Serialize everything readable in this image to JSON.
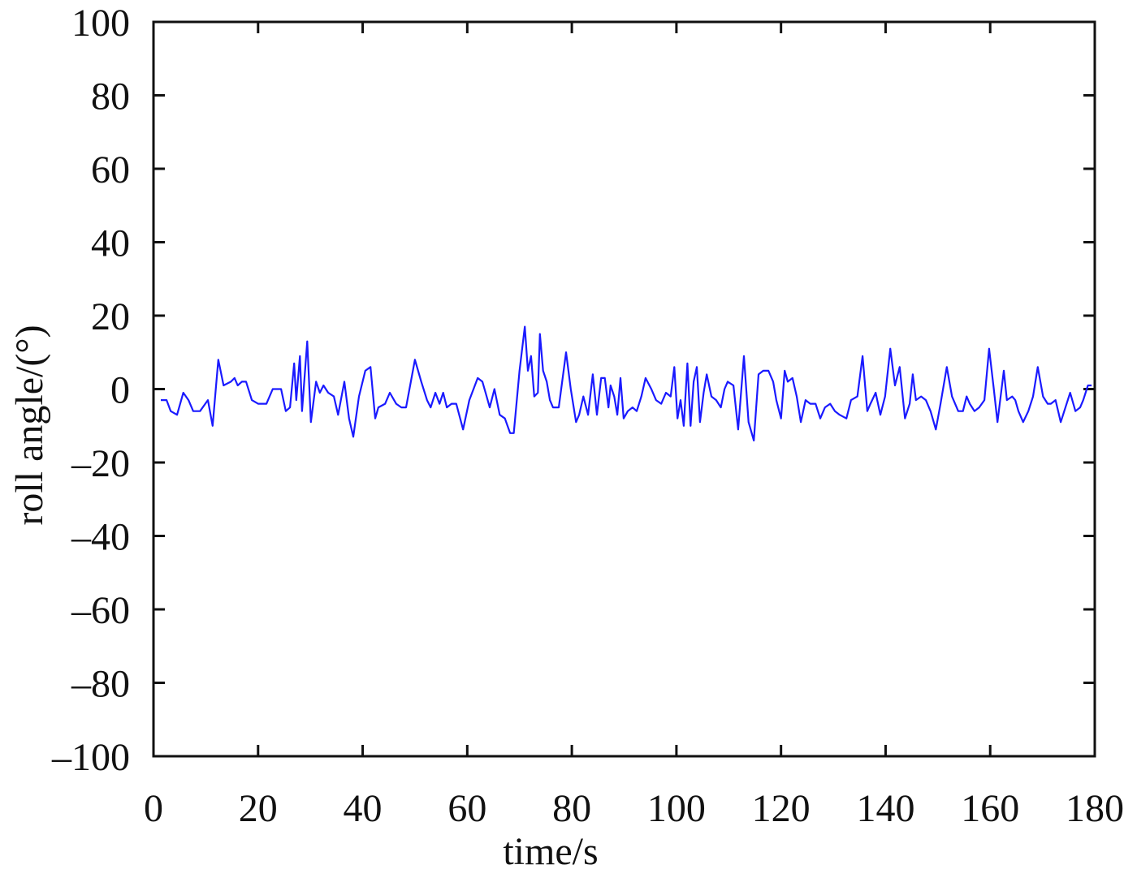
{
  "chart_data": {
    "type": "line",
    "xlabel": "time/s",
    "ylabel": "roll angle/(°)",
    "xlim": [
      0,
      180
    ],
    "xticks": [
      0,
      20,
      40,
      60,
      80,
      100,
      120,
      140,
      160,
      180
    ],
    "ylim": [
      -100,
      100
    ],
    "yticks": [
      {
        "value": -100,
        "label": "–100"
      },
      {
        "value": -80,
        "label": "–80"
      },
      {
        "value": -60,
        "label": "–60"
      },
      {
        "value": -40,
        "label": "–40"
      },
      {
        "value": -20,
        "label": "–20"
      },
      0,
      20,
      40,
      60,
      80,
      100
    ],
    "x": [
      1.4,
      2.5,
      3.3,
      4.5,
      5.7,
      6.7,
      7.6,
      8.9,
      10.4,
      11.3,
      12.4,
      13.4,
      14.8,
      15.5,
      16.1,
      16.9,
      17.7,
      18.8,
      20.0,
      21.6,
      22.8,
      24.4,
      25.3,
      26.1,
      26.9,
      27.3,
      28.0,
      28.4,
      29.4,
      30.1,
      31.1,
      31.8,
      32.5,
      33.4,
      34.5,
      35.3,
      36.5,
      37.4,
      38.2,
      39.3,
      40.5,
      41.5,
      42.4,
      43.0,
      44.3,
      45.2,
      46.4,
      47.4,
      48.3,
      50.0,
      51.2,
      52.3,
      53.0,
      53.9,
      54.7,
      55.4,
      56.1,
      57.0,
      57.9,
      59.2,
      60.4,
      62.0,
      62.9,
      63.5,
      64.3,
      65.2,
      66.2,
      67.2,
      68.2,
      68.9,
      70.0,
      71.0,
      71.6,
      72.2,
      72.8,
      73.5,
      73.9,
      74.5,
      75.2,
      75.8,
      76.4,
      77.5,
      78.9,
      79.8,
      80.8,
      81.4,
      82.2,
      83.1,
      84.0,
      84.8,
      85.6,
      86.3,
      87.0,
      87.4,
      88.1,
      88.7,
      89.3,
      89.9,
      90.7,
      91.6,
      92.4,
      93.3,
      94.1,
      95.2,
      96.1,
      97.1,
      98.0,
      98.9,
      99.6,
      100.2,
      100.8,
      101.4,
      102.1,
      102.7,
      103.3,
      103.9,
      104.5,
      105.2,
      105.8,
      106.7,
      107.6,
      108.5,
      109.2,
      109.8,
      110.9,
      111.8,
      112.9,
      113.8,
      114.8,
      115.7,
      116.6,
      117.6,
      118.5,
      119.1,
      120.0,
      120.7,
      121.3,
      122.2,
      123.0,
      123.8,
      124.7,
      125.6,
      126.6,
      127.5,
      128.4,
      129.4,
      130.3,
      131.2,
      132.5,
      133.4,
      134.6,
      135.6,
      136.5,
      137.1,
      138.1,
      139.0,
      139.9,
      140.9,
      141.8,
      142.7,
      143.7,
      144.6,
      145.2,
      145.8,
      146.8,
      147.7,
      148.6,
      149.6,
      150.5,
      151.7,
      152.7,
      153.9,
      154.8,
      155.5,
      156.1,
      157.0,
      157.9,
      158.9,
      159.8,
      160.7,
      161.4,
      162.6,
      163.2,
      164.2,
      164.8,
      165.4,
      166.3,
      167.3,
      168.2,
      169.1,
      170.1,
      171.0,
      171.6,
      172.5,
      173.5,
      174.4,
      175.3,
      176.3,
      177.2,
      177.8,
      178.7,
      179.4
    ],
    "series": [
      {
        "name": "roll angle",
        "color": "#1a1aff",
        "values": [
          -3,
          -3,
          -6,
          -7,
          -1,
          -3,
          -6,
          -6,
          -3,
          -10,
          8,
          1,
          2,
          3,
          1,
          2,
          2,
          -3,
          -4,
          -4,
          0,
          0,
          -6,
          -5,
          7,
          -3,
          9,
          -6,
          13,
          -9,
          2,
          -1,
          1,
          -1,
          -2,
          -7,
          2,
          -8,
          -13,
          -2,
          5,
          6,
          -8,
          -5,
          -4,
          -1,
          -4,
          -5,
          -5,
          8,
          2,
          -3,
          -5,
          -1,
          -4,
          -1,
          -5,
          -4,
          -4,
          -11,
          -3,
          3,
          2,
          -1,
          -5,
          0,
          -7,
          -8,
          -12,
          -12,
          5,
          17,
          5,
          9,
          -2,
          -1,
          15,
          5,
          2,
          -3,
          -5,
          -5,
          10,
          0,
          -9,
          -7,
          -2,
          -7,
          4,
          -7,
          3,
          3,
          -5,
          1,
          -2,
          -7,
          3,
          -8,
          -6,
          -5,
          -6,
          -2,
          3,
          0,
          -3,
          -4,
          -1,
          -2,
          6,
          -8,
          -3,
          -10,
          7,
          -10,
          2,
          6,
          -9,
          -1,
          4,
          -2,
          -3,
          -5,
          0,
          2,
          1,
          -11,
          9,
          -9,
          -14,
          4,
          5,
          5,
          2,
          -3,
          -8,
          5,
          2,
          3,
          -2,
          -9,
          -3,
          -4,
          -4,
          -8,
          -5,
          -4,
          -6,
          -7,
          -8,
          -3,
          -2,
          9,
          -6,
          -4,
          -1,
          -7,
          -2,
          11,
          1,
          6,
          -8,
          -4,
          4,
          -3,
          -2,
          -3,
          -6,
          -11,
          -4,
          6,
          -2,
          -6,
          -6,
          -2,
          -4,
          -6,
          -5,
          -3,
          11,
          0,
          -9,
          5,
          -3,
          -2,
          -3,
          -6,
          -9,
          -6,
          -2,
          6,
          -2,
          -4,
          -4,
          -3,
          -9,
          -5,
          -1,
          -6,
          -5,
          -3,
          1,
          1
        ]
      }
    ]
  }
}
